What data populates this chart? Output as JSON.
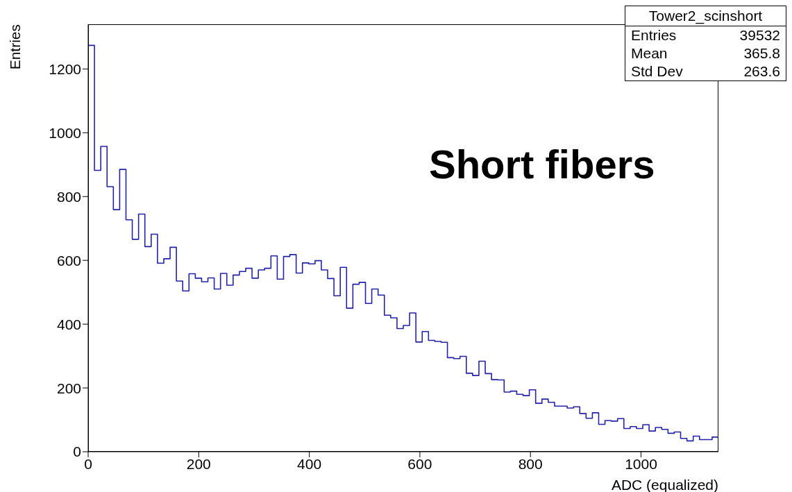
{
  "chart_data": {
    "type": "histogram",
    "xlabel": "ADC (equalized)",
    "ylabel": "Entries",
    "bins": [
      0,
      11.4,
      22.8,
      34.2,
      45.6,
      57,
      68.4,
      79.8,
      91.2,
      102.6,
      114,
      125.4,
      136.8,
      148.2,
      159.6,
      171,
      182.4,
      193.8,
      205.2,
      216.6,
      228,
      239.4,
      250.8,
      262.2,
      273.6,
      285,
      296.4,
      307.8,
      319.2,
      330.6,
      342,
      353.4,
      364.8,
      376.2,
      387.6,
      399,
      410.4,
      421.8,
      433.2,
      444.6,
      456,
      467.4,
      478.8,
      490.2,
      501.6,
      513,
      524.4,
      535.8,
      547.2,
      558.6,
      570,
      581.4,
      592.8,
      604.2,
      615.6,
      627,
      638.4,
      649.8,
      661.2,
      672.6,
      684,
      695.4,
      706.8,
      718.2,
      729.6,
      741,
      752.4,
      763.8,
      775.2,
      786.6,
      798,
      809.4,
      820.8,
      832.2,
      843.6,
      855,
      866.4,
      877.8,
      889.2,
      900.6,
      912,
      923.4,
      934.8,
      946.2,
      957.6,
      969,
      980.4,
      991.8,
      1003.2,
      1014.6,
      1026,
      1037.4,
      1048.8,
      1060.2,
      1071.6,
      1083,
      1094.4,
      1105.8,
      1117.2,
      1128.6,
      1140
    ],
    "values": [
      1274,
      882,
      957,
      831,
      759,
      885,
      727,
      666,
      745,
      643,
      682,
      591,
      605,
      641,
      535,
      504,
      558,
      544,
      533,
      545,
      510,
      559,
      522,
      554,
      565,
      575,
      544,
      570,
      575,
      614,
      541,
      612,
      618,
      560,
      592,
      589,
      599,
      570,
      543,
      489,
      578,
      450,
      525,
      531,
      465,
      510,
      491,
      428,
      420,
      386,
      396,
      435,
      344,
      377,
      349,
      346,
      343,
      295,
      292,
      299,
      246,
      239,
      284,
      245,
      226,
      225,
      187,
      190,
      180,
      176,
      194,
      152,
      165,
      155,
      143,
      143,
      137,
      141,
      120,
      105,
      122,
      86,
      98,
      96,
      104,
      73,
      79,
      73,
      85,
      65,
      76,
      70,
      58,
      62,
      42,
      34,
      49,
      38,
      38,
      46
    ],
    "color": "#2323aa",
    "xlim": [
      0,
      1140
    ],
    "ylim": [
      0,
      1340
    ],
    "xticks": [
      0,
      200,
      400,
      600,
      800,
      1000
    ],
    "yticks": [
      0,
      200,
      400,
      600,
      800,
      1000,
      1200
    ],
    "annotations": [
      "Short fibers",
      "Tower2_scinshort",
      "Entries",
      "39532",
      "Mean",
      "365.8",
      "Std Dev",
      "263.6"
    ]
  }
}
